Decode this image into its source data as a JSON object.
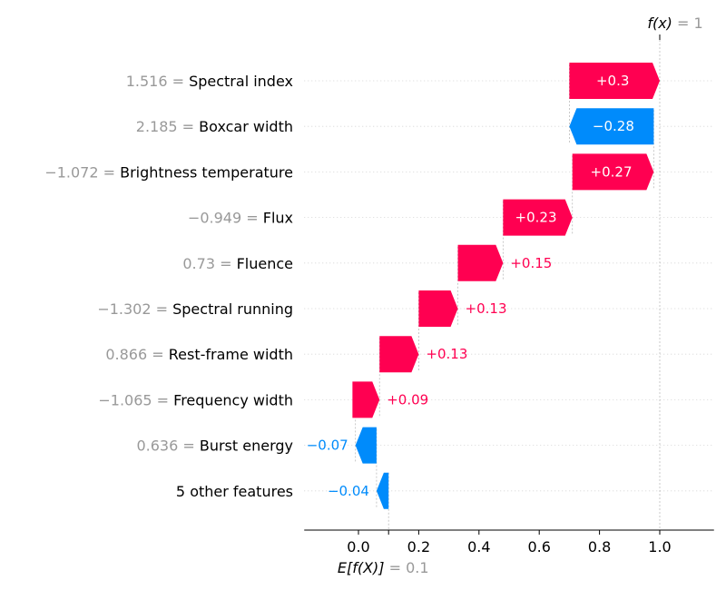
{
  "chart_data": {
    "type": "waterfall",
    "fx_label": "f(x)",
    "fx_value": "= 1",
    "base_label": "E[f(X)]",
    "base_value": "= 0.1",
    "base": 0.1,
    "final": 1.0,
    "xlim": [
      -0.18,
      1.18
    ],
    "xticks": [
      "0.0",
      "0.2",
      "0.4",
      "0.6",
      "0.8",
      "1.0"
    ],
    "xtick_values": [
      0.0,
      0.2,
      0.4,
      0.6,
      0.8,
      1.0
    ],
    "colors": {
      "positive": "#ff0051",
      "negative": "#008bfb",
      "label_value": "#999999",
      "label_name": "#000000"
    },
    "features": [
      {
        "value_text": "1.516 =",
        "name": "Spectral index",
        "contribution": 0.3,
        "label": "+0.3",
        "start": 0.7,
        "end": 1.0
      },
      {
        "value_text": "2.185 =",
        "name": "Boxcar width",
        "contribution": -0.28,
        "label": "−0.28",
        "start": 0.98,
        "end": 0.7
      },
      {
        "value_text": "−1.072 =",
        "name": "Brightness temperature",
        "contribution": 0.27,
        "label": "+0.27",
        "start": 0.71,
        "end": 0.98
      },
      {
        "value_text": "−0.949 =",
        "name": "Flux",
        "contribution": 0.23,
        "label": "+0.23",
        "start": 0.48,
        "end": 0.71
      },
      {
        "value_text": "0.73 =",
        "name": "Fluence",
        "contribution": 0.15,
        "label": "+0.15",
        "start": 0.33,
        "end": 0.48
      },
      {
        "value_text": "−1.302 =",
        "name": "Spectral running",
        "contribution": 0.13,
        "label": "+0.13",
        "start": 0.2,
        "end": 0.33
      },
      {
        "value_text": "0.866 =",
        "name": "Rest-frame width",
        "contribution": 0.13,
        "label": "+0.13",
        "start": 0.07,
        "end": 0.2
      },
      {
        "value_text": "−1.065 =",
        "name": "Frequency width",
        "contribution": 0.09,
        "label": "+0.09",
        "start": -0.02,
        "end": 0.07
      },
      {
        "value_text": "0.636 =",
        "name": "Burst energy",
        "contribution": -0.07,
        "label": "−0.07",
        "start": 0.06,
        "end": -0.01
      },
      {
        "value_text": "",
        "name": "5 other features",
        "contribution": -0.04,
        "label": "−0.04",
        "start": 0.1,
        "end": 0.06
      }
    ]
  }
}
